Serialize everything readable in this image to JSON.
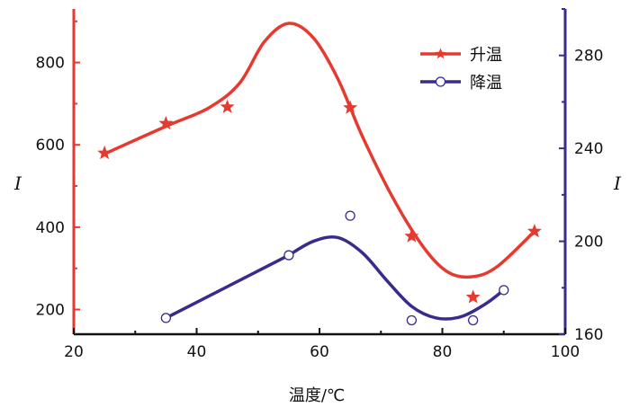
{
  "chart_data": {
    "type": "line",
    "xlabel": "温度/℃",
    "ylabel_left": "I",
    "ylabel_right": "I",
    "xlim": [
      20,
      100
    ],
    "ylim_left": [
      140,
      930
    ],
    "ylim_right": [
      160,
      300
    ],
    "x_ticks": [
      20,
      40,
      60,
      80,
      100
    ],
    "y_ticks_left": [
      200,
      400,
      600,
      800
    ],
    "y_ticks_right": [
      160,
      200,
      240,
      280
    ],
    "grid": false,
    "legend_position": "top-right",
    "colors": {
      "heating": "#e53a2f",
      "cooling": "#3a2a8c"
    },
    "series": [
      {
        "name": "升温",
        "axis": "left",
        "marker": "star",
        "color": "#e53a2f",
        "points": [
          {
            "x": 25,
            "y": 580
          },
          {
            "x": 35,
            "y": 652
          },
          {
            "x": 45,
            "y": 692
          },
          {
            "x": 65,
            "y": 690
          },
          {
            "x": 75,
            "y": 378
          },
          {
            "x": 85,
            "y": 230
          },
          {
            "x": 95,
            "y": 390
          }
        ],
        "curve": [
          {
            "x": 25,
            "y": 578
          },
          {
            "x": 35,
            "y": 645
          },
          {
            "x": 42,
            "y": 690
          },
          {
            "x": 47,
            "y": 750
          },
          {
            "x": 51,
            "y": 850
          },
          {
            "x": 55,
            "y": 895
          },
          {
            "x": 59,
            "y": 860
          },
          {
            "x": 63,
            "y": 760
          },
          {
            "x": 67,
            "y": 620
          },
          {
            "x": 72,
            "y": 470
          },
          {
            "x": 77,
            "y": 350
          },
          {
            "x": 81,
            "y": 290
          },
          {
            "x": 85,
            "y": 280
          },
          {
            "x": 89,
            "y": 305
          },
          {
            "x": 95,
            "y": 390
          }
        ]
      },
      {
        "name": "降温",
        "axis": "right",
        "marker": "circle",
        "color": "#3a2a8c",
        "points": [
          {
            "x": 35,
            "y": 167
          },
          {
            "x": 55,
            "y": 194
          },
          {
            "x": 65,
            "y": 211
          },
          {
            "x": 75,
            "y": 166
          },
          {
            "x": 85,
            "y": 166
          },
          {
            "x": 90,
            "y": 179
          }
        ],
        "curve": [
          {
            "x": 55,
            "y": 194
          },
          {
            "x": 59,
            "y": 200
          },
          {
            "x": 63,
            "y": 201.6
          },
          {
            "x": 67,
            "y": 195
          },
          {
            "x": 71,
            "y": 183
          },
          {
            "x": 75,
            "y": 172
          },
          {
            "x": 79,
            "y": 167
          },
          {
            "x": 83,
            "y": 167.5
          },
          {
            "x": 87,
            "y": 173
          },
          {
            "x": 90,
            "y": 179
          }
        ],
        "curve_linear_start": {
          "x": 35,
          "y": 167
        }
      }
    ]
  }
}
